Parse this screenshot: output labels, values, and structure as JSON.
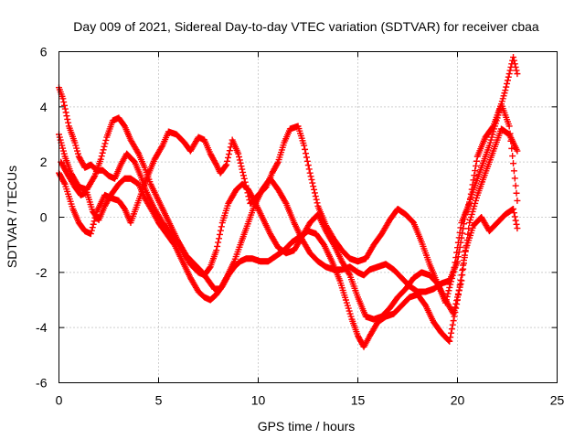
{
  "chart_data": {
    "type": "scatter",
    "title": "Day 009 of 2021, Sidereal Day-to-day VTEC variation (SDTVAR) for receiver cbaa",
    "xlabel": "GPS time / hours",
    "ylabel": "SDTVAR / TECUs",
    "xlim": [
      0,
      25
    ],
    "ylim": [
      -6,
      6
    ],
    "xticks": [
      0,
      5,
      10,
      15,
      20,
      25
    ],
    "yticks": [
      -6,
      -4,
      -2,
      0,
      2,
      4,
      6
    ],
    "grid": true,
    "marker": "plus",
    "color": "#ff0000",
    "series": [
      {
        "x": [
          0.0,
          0.2,
          0.5,
          0.8,
          1.0,
          1.3,
          1.6,
          1.9,
          2.2,
          2.5,
          2.8,
          3.1,
          3.4,
          3.8,
          4.1,
          4.4,
          4.8,
          5.2,
          5.6,
          6.0,
          6.4,
          6.8,
          7.2,
          7.5,
          7.8,
          8.1,
          8.4,
          8.8,
          9.1,
          9.4,
          9.8,
          10.2,
          10.6,
          11.0,
          11.4,
          11.8,
          12.2,
          12.6,
          13.0,
          13.4,
          13.8,
          14.2,
          14.6,
          15.0,
          15.3,
          15.6,
          16.0,
          16.4,
          16.8,
          17.2,
          17.6,
          18.0,
          18.4,
          18.8,
          19.2,
          19.6,
          20.0,
          20.4,
          20.8,
          21.2,
          21.6,
          22.0,
          22.4,
          22.8,
          23.0
        ],
        "y": [
          4.7,
          4.3,
          3.3,
          2.7,
          2.2,
          1.8,
          1.9,
          1.7,
          1.7,
          1.5,
          1.4,
          1.9,
          2.3,
          2.0,
          1.5,
          0.9,
          0.3,
          -0.2,
          -0.6,
          -0.9,
          -1.4,
          -1.7,
          -2.0,
          -2.3,
          -2.6,
          -2.6,
          -2.2,
          -1.6,
          -1.0,
          -0.4,
          0.4,
          1.0,
          1.4,
          1.0,
          0.5,
          -0.2,
          -0.8,
          -1.3,
          -1.6,
          -1.8,
          -1.9,
          -1.9,
          -1.8,
          -2.0,
          -2.1,
          -1.9,
          -1.8,
          -1.7,
          -1.9,
          -2.2,
          -2.5,
          -2.7,
          -2.7,
          -2.6,
          -2.4,
          -2.3,
          -1.6,
          0.1,
          1.0,
          1.8,
          2.6,
          3.6,
          4.6,
          5.8,
          5.2
        ]
      },
      {
        "x": [
          0.0,
          0.3,
          0.6,
          1.0,
          1.4,
          1.8,
          2.1,
          2.4,
          2.7,
          3.0,
          3.3,
          3.6,
          4.0,
          4.3,
          4.6,
          5.0,
          5.4,
          5.8,
          6.2,
          6.6,
          7.0,
          7.3,
          7.6,
          7.9,
          8.2,
          8.5,
          8.9,
          9.2,
          9.5,
          9.8,
          10.2,
          10.6,
          11.0,
          11.4,
          11.8,
          12.2,
          12.6,
          13.0,
          13.4,
          13.8,
          14.2,
          14.6,
          15.0,
          15.4,
          15.8,
          16.2,
          16.6,
          17.0,
          17.4,
          17.8,
          18.2,
          18.6,
          19.0,
          19.4,
          19.8,
          20.2,
          20.6,
          21.0,
          21.4,
          21.8,
          22.2,
          22.6,
          23.0
        ],
        "y": [
          3.0,
          2.2,
          1.6,
          1.1,
          1.0,
          1.5,
          2.1,
          2.9,
          3.5,
          3.6,
          3.3,
          2.8,
          2.3,
          1.8,
          1.2,
          0.6,
          0.0,
          -0.6,
          -1.2,
          -1.7,
          -2.0,
          -2.1,
          -1.8,
          -1.2,
          -0.2,
          0.5,
          1.0,
          1.2,
          1.0,
          0.6,
          0.0,
          -0.6,
          -1.1,
          -1.3,
          -1.2,
          -0.7,
          -0.2,
          0.1,
          -0.5,
          -1.0,
          -1.6,
          -2.1,
          -2.9,
          -3.6,
          -3.7,
          -3.6,
          -3.3,
          -2.9,
          -2.6,
          -2.2,
          -2.0,
          -2.1,
          -2.4,
          -3.0,
          -3.5,
          -2.3,
          -0.2,
          0.8,
          1.6,
          2.4,
          3.2,
          3.0,
          2.4
        ]
      },
      {
        "x": [
          0.0,
          0.3,
          0.7,
          1.0,
          1.3,
          1.6,
          1.9,
          2.3,
          2.6,
          3.0,
          3.3,
          3.6,
          4.0,
          4.4,
          4.8,
          5.2,
          5.5,
          5.9,
          6.3,
          6.6,
          7.0,
          7.3,
          7.6,
          7.9,
          8.1,
          8.4,
          8.7,
          9.0,
          9.3,
          9.6,
          10.0,
          10.4,
          10.7,
          11.0,
          11.3,
          11.6,
          12.0,
          12.3,
          12.6,
          13.0,
          13.4,
          13.8,
          14.2,
          14.6,
          15.0,
          15.4,
          15.8,
          16.2,
          16.6,
          17.0,
          17.4,
          17.8,
          18.2,
          18.6,
          19.0,
          19.4,
          19.8,
          20.2,
          20.6,
          21.0,
          21.4,
          21.8,
          22.2,
          22.6,
          23.0
        ],
        "y": [
          1.6,
          1.2,
          0.3,
          -0.2,
          -0.5,
          -0.6,
          0.2,
          0.8,
          0.7,
          0.6,
          0.3,
          -0.2,
          0.6,
          1.4,
          2.1,
          2.6,
          3.1,
          3.0,
          2.7,
          2.4,
          2.9,
          2.8,
          2.3,
          1.9,
          1.6,
          1.9,
          2.8,
          2.3,
          1.4,
          0.5,
          0.8,
          1.1,
          1.6,
          2.0,
          2.7,
          3.2,
          3.3,
          2.6,
          1.6,
          0.4,
          -0.3,
          -0.8,
          -1.2,
          -1.5,
          -1.6,
          -1.5,
          -1.0,
          -0.6,
          -0.1,
          0.3,
          0.1,
          -0.2,
          -0.9,
          -1.7,
          -2.4,
          -3.1,
          -2.0,
          -0.2,
          0.5,
          2.2,
          2.9,
          3.3,
          4.1,
          3.3,
          0.6
        ]
      },
      {
        "x": [
          0.1,
          0.4,
          0.8,
          1.1,
          1.4,
          1.7,
          2.0,
          2.3,
          2.6,
          3.0,
          3.3,
          3.6,
          4.0,
          4.3,
          4.7,
          5.0,
          5.4,
          5.8,
          6.2,
          6.6,
          7.0,
          7.3,
          7.6,
          7.9,
          8.2,
          8.5,
          8.8,
          9.1,
          9.4,
          9.7,
          10.1,
          10.5,
          10.9,
          11.3,
          11.7,
          12.1,
          12.5,
          12.9,
          13.3,
          13.7,
          14.1,
          14.4,
          14.7,
          15.0,
          15.3,
          15.6,
          16.0,
          16.4,
          16.8,
          17.2,
          17.6,
          18.0,
          18.4,
          18.8,
          19.2,
          19.6,
          20.0,
          20.4,
          20.8,
          21.2,
          21.6,
          22.0,
          22.4,
          22.8,
          23.0
        ],
        "y": [
          2.0,
          1.6,
          1.1,
          0.8,
          0.9,
          0.2,
          -0.1,
          0.4,
          0.8,
          1.2,
          1.4,
          1.4,
          1.2,
          0.7,
          0.2,
          -0.2,
          -0.6,
          -1.0,
          -1.6,
          -2.2,
          -2.7,
          -2.9,
          -3.0,
          -2.8,
          -2.5,
          -2.1,
          -1.8,
          -1.6,
          -1.5,
          -1.5,
          -1.6,
          -1.6,
          -1.4,
          -1.2,
          -0.9,
          -0.7,
          -0.5,
          -0.6,
          -1.0,
          -1.6,
          -2.3,
          -3.0,
          -3.7,
          -4.3,
          -4.7,
          -4.3,
          -3.8,
          -3.6,
          -3.5,
          -3.2,
          -2.9,
          -2.8,
          -3.2,
          -3.8,
          -4.2,
          -4.5,
          -3.0,
          -1.2,
          -0.3,
          0.0,
          -0.5,
          -0.2,
          0.1,
          0.3,
          -0.4
        ]
      }
    ]
  }
}
